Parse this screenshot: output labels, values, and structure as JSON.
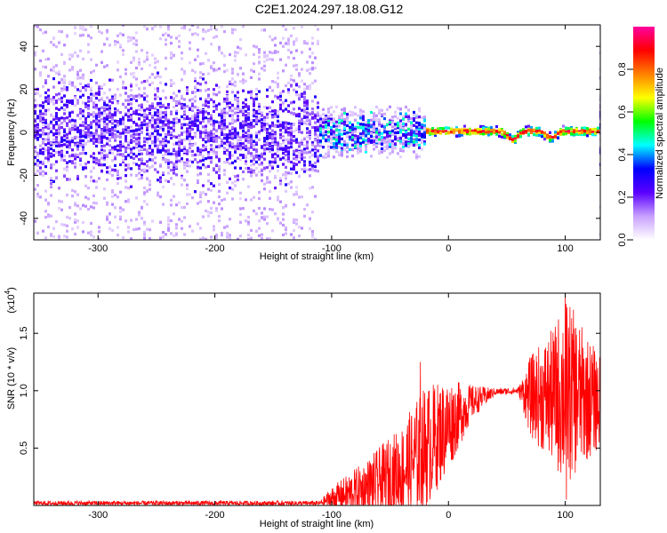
{
  "figure_title": "C2E1.2024.297.18.08.G12",
  "chart_data": [
    {
      "type": "heatmap",
      "xlabel": "Height of straight line (km)",
      "ylabel": "Frequency (Hz)",
      "xlim": [
        -355,
        130
      ],
      "ylim": [
        -50,
        50
      ],
      "x_ticks": [
        -300,
        -200,
        -100,
        0,
        100
      ],
      "y_ticks": [
        -40,
        -20,
        0,
        20,
        40
      ],
      "colorbar": {
        "label": "Normalized spectral amplitude",
        "range": [
          0,
          1
        ],
        "ticks": [
          0.0,
          0.2,
          0.4,
          0.6,
          0.8
        ],
        "tick_labels": [
          "0.0",
          "0.2",
          "0.4",
          "0.6",
          "0.8"
        ],
        "colormap": [
          "#ffffff",
          "#c8a0ff",
          "#5a00ff",
          "#0000ff",
          "#00ffff",
          "#00ff00",
          "#ffff00",
          "#ff8000",
          "#ff0000",
          "#ff00a0"
        ]
      },
      "regions": [
        {
          "x_range": [
            -355,
            -110
          ],
          "description_freq_spread": 50,
          "core_freq_spread": 10,
          "peak_amplitude": 0.3
        },
        {
          "x_range": [
            -110,
            -20
          ],
          "description_freq_spread": 12,
          "core_freq_spread": 4,
          "peak_amplitude": 0.5
        },
        {
          "x_range": [
            -20,
            130
          ],
          "description_freq_spread": 2,
          "core_freq_spread": 1,
          "peak_amplitude": 0.95
        }
      ],
      "ridge_dips": [
        {
          "x": 55,
          "freq": -4
        },
        {
          "x": 88,
          "freq": -3
        }
      ]
    },
    {
      "type": "line",
      "xlabel": "Height of straight line (km)",
      "ylabel": "SNR (10 * v/v)",
      "y_multiplier": "(x10",
      "y_multiplier_exp": "4",
      "y_multiplier_close": ")",
      "xlim": [
        -355,
        130
      ],
      "ylim": [
        0,
        1.85
      ],
      "x_ticks": [
        -300,
        -200,
        -100,
        0,
        100
      ],
      "y_ticks": [
        0.5,
        1.0,
        1.5
      ],
      "y_tick_labels": [
        "0.5",
        "1.0",
        "1.5"
      ],
      "series_color": "#ff0000",
      "envelope": [
        {
          "x": -355,
          "base": 0.02,
          "spread": 0.02
        },
        {
          "x": -110,
          "base": 0.02,
          "spread": 0.02
        },
        {
          "x": -100,
          "base": 0.06,
          "spread": 0.1
        },
        {
          "x": -70,
          "base": 0.15,
          "spread": 0.25
        },
        {
          "x": -40,
          "base": 0.3,
          "spread": 0.4
        },
        {
          "x": -20,
          "base": 0.5,
          "spread": 0.55
        },
        {
          "x": 0,
          "base": 0.7,
          "spread": 0.4
        },
        {
          "x": 20,
          "base": 0.9,
          "spread": 0.15
        },
        {
          "x": 40,
          "base": 0.99,
          "spread": 0.03
        },
        {
          "x": 60,
          "base": 1.0,
          "spread": 0.03
        },
        {
          "x": 70,
          "base": 0.95,
          "spread": 0.35
        },
        {
          "x": 90,
          "base": 0.95,
          "spread": 0.6
        },
        {
          "x": 100,
          "base": 1.0,
          "spread": 0.85
        },
        {
          "x": 115,
          "base": 0.95,
          "spread": 0.6
        },
        {
          "x": 130,
          "base": 0.9,
          "spread": 0.4
        }
      ],
      "spikes": [
        {
          "x": -24,
          "y": 1.25
        },
        {
          "x": 100,
          "y": 1.85
        },
        {
          "x": 101,
          "y": 0.05
        }
      ]
    }
  ]
}
